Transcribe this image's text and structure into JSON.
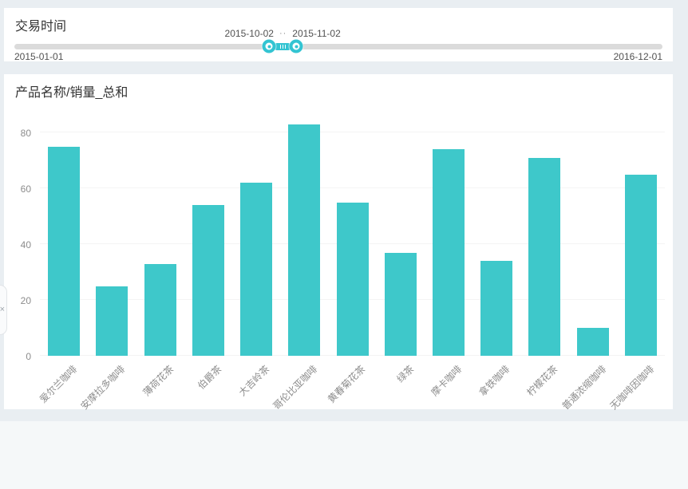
{
  "colors": {
    "accent_teal": "#33C4D2",
    "bar_teal": "#3EC8CA",
    "track_gray": "#DBDBDB",
    "canvas_bg": "#E9EEF2",
    "outer_bg": "#F5F8F9",
    "panel_bg": "#FFFFFF",
    "grid_line": "#F4F4F4",
    "title_text": "#333333",
    "axis_text": "#8C8C8C",
    "date_text": "#515151"
  },
  "filter_panel": {
    "title": "交易时间",
    "slider": {
      "start_value": "2015-10-02",
      "end_value": "2015-11-02",
      "separator": "··",
      "min_label": "2015-01-01",
      "max_label": "2016-12-01",
      "start_pct": 39.3,
      "end_pct": 43.5
    }
  },
  "chart_panel": {
    "title": "产品名称/销量_总和"
  },
  "chart_data": {
    "type": "bar",
    "title": "产品名称/销量_总和",
    "categories": [
      "爱尔兰咖啡",
      "安摩拉多咖啡",
      "薄荷花茶",
      "伯爵茶",
      "大吉岭茶",
      "哥伦比亚咖啡",
      "黄春菊花茶",
      "绿茶",
      "摩卡咖啡",
      "拿铁咖啡",
      "柠檬花茶",
      "普通浓缩咖啡",
      "无咖啡因咖啡"
    ],
    "values": [
      75,
      25,
      33,
      54,
      62,
      83,
      55,
      37,
      74,
      34,
      71,
      10,
      65
    ],
    "xlabel": "",
    "ylabel": "",
    "yticks": [
      0,
      20,
      40,
      60,
      80
    ],
    "ylim": [
      0,
      80
    ],
    "grid": true,
    "legend_position": "none",
    "bar_color": "#3EC8CA"
  },
  "drawer": {
    "icon_glyph": "×"
  }
}
